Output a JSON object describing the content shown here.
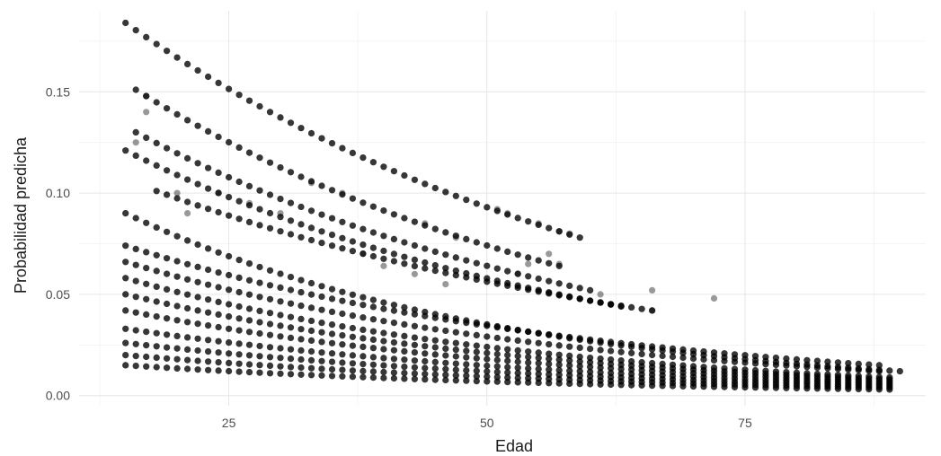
{
  "chart_data": {
    "type": "scatter",
    "title": "",
    "xlabel": "Edad",
    "ylabel": "Probabilidad predicha",
    "xlim": [
      10.5,
      92.5
    ],
    "ylim": [
      -0.005,
      0.19
    ],
    "x_ticks": [
      25,
      50,
      75
    ],
    "x_tick_labels": [
      "25",
      "50",
      "75"
    ],
    "y_ticks": [
      0.0,
      0.05,
      0.1,
      0.15
    ],
    "y_tick_labels": [
      "0.00",
      "0.05",
      "0.10",
      "0.15"
    ],
    "grid": true,
    "legend": "none",
    "point_color": "#000000",
    "point_opacity": 0.4,
    "x_range": [
      15,
      90
    ],
    "series": [
      {
        "curve_start": [
          15,
          0.184
        ],
        "curve_end": [
          59,
          0.078
        ],
        "x_range": [
          15,
          59
        ]
      },
      {
        "curve_start": [
          16,
          0.151
        ],
        "curve_end": [
          57,
          0.064
        ],
        "x_range": [
          16,
          57
        ]
      },
      {
        "curve_start": [
          16,
          0.13
        ],
        "curve_end": [
          60,
          0.052
        ],
        "x_range": [
          16,
          60
        ]
      },
      {
        "curve_start": [
          15,
          0.121
        ],
        "curve_end": [
          63,
          0.044
        ],
        "x_range": [
          15,
          63
        ]
      },
      {
        "curve_start": [
          18,
          0.101
        ],
        "curve_end": [
          66,
          0.042
        ],
        "x_range": [
          18,
          66
        ]
      },
      {
        "curve_start": [
          15,
          0.09
        ],
        "curve_end": [
          90,
          0.012
        ],
        "x_range": [
          15,
          90
        ]
      },
      {
        "curve_start": [
          15,
          0.074
        ],
        "curve_end": [
          88,
          0.015
        ],
        "x_range": [
          15,
          88
        ]
      },
      {
        "curve_start": [
          15,
          0.066
        ],
        "curve_end": [
          88,
          0.012
        ],
        "x_range": [
          15,
          88
        ]
      },
      {
        "curve_start": [
          15,
          0.058
        ],
        "curve_end": [
          89,
          0.009
        ],
        "x_range": [
          15,
          89
        ]
      },
      {
        "curve_start": [
          15,
          0.05
        ],
        "curve_end": [
          89,
          0.008
        ],
        "x_range": [
          15,
          89
        ]
      },
      {
        "curve_start": [
          15,
          0.042
        ],
        "curve_end": [
          89,
          0.007
        ],
        "x_range": [
          15,
          89
        ]
      },
      {
        "curve_start": [
          15,
          0.033
        ],
        "curve_end": [
          89,
          0.006
        ],
        "x_range": [
          15,
          89
        ]
      },
      {
        "curve_start": [
          15,
          0.026
        ],
        "curve_end": [
          89,
          0.005
        ],
        "x_range": [
          15,
          89
        ]
      },
      {
        "curve_start": [
          15,
          0.02
        ],
        "curve_end": [
          89,
          0.004
        ],
        "x_range": [
          15,
          89
        ]
      },
      {
        "curve_start": [
          15,
          0.015
        ],
        "curve_end": [
          89,
          0.003
        ],
        "x_range": [
          15,
          89
        ]
      }
    ],
    "outliers": [
      [
        72,
        0.048
      ],
      [
        66,
        0.052
      ],
      [
        66,
        0.042
      ],
      [
        62,
        0.045
      ],
      [
        61,
        0.05
      ],
      [
        57,
        0.081
      ],
      [
        58,
        0.08
      ],
      [
        55,
        0.085
      ],
      [
        56,
        0.07
      ],
      [
        57,
        0.065
      ],
      [
        53,
        0.06
      ],
      [
        54,
        0.065
      ],
      [
        52,
        0.09
      ],
      [
        51,
        0.092
      ],
      [
        46,
        0.055
      ],
      [
        43,
        0.06
      ],
      [
        40,
        0.064
      ],
      [
        38,
        0.07
      ],
      [
        44,
        0.085
      ],
      [
        47,
        0.078
      ],
      [
        36,
        0.1
      ],
      [
        33,
        0.105
      ],
      [
        30,
        0.09
      ],
      [
        27,
        0.095
      ],
      [
        24,
        0.1
      ],
      [
        20,
        0.1
      ],
      [
        21,
        0.09
      ],
      [
        16,
        0.125
      ],
      [
        17,
        0.14
      ],
      [
        17,
        0.148
      ]
    ]
  }
}
